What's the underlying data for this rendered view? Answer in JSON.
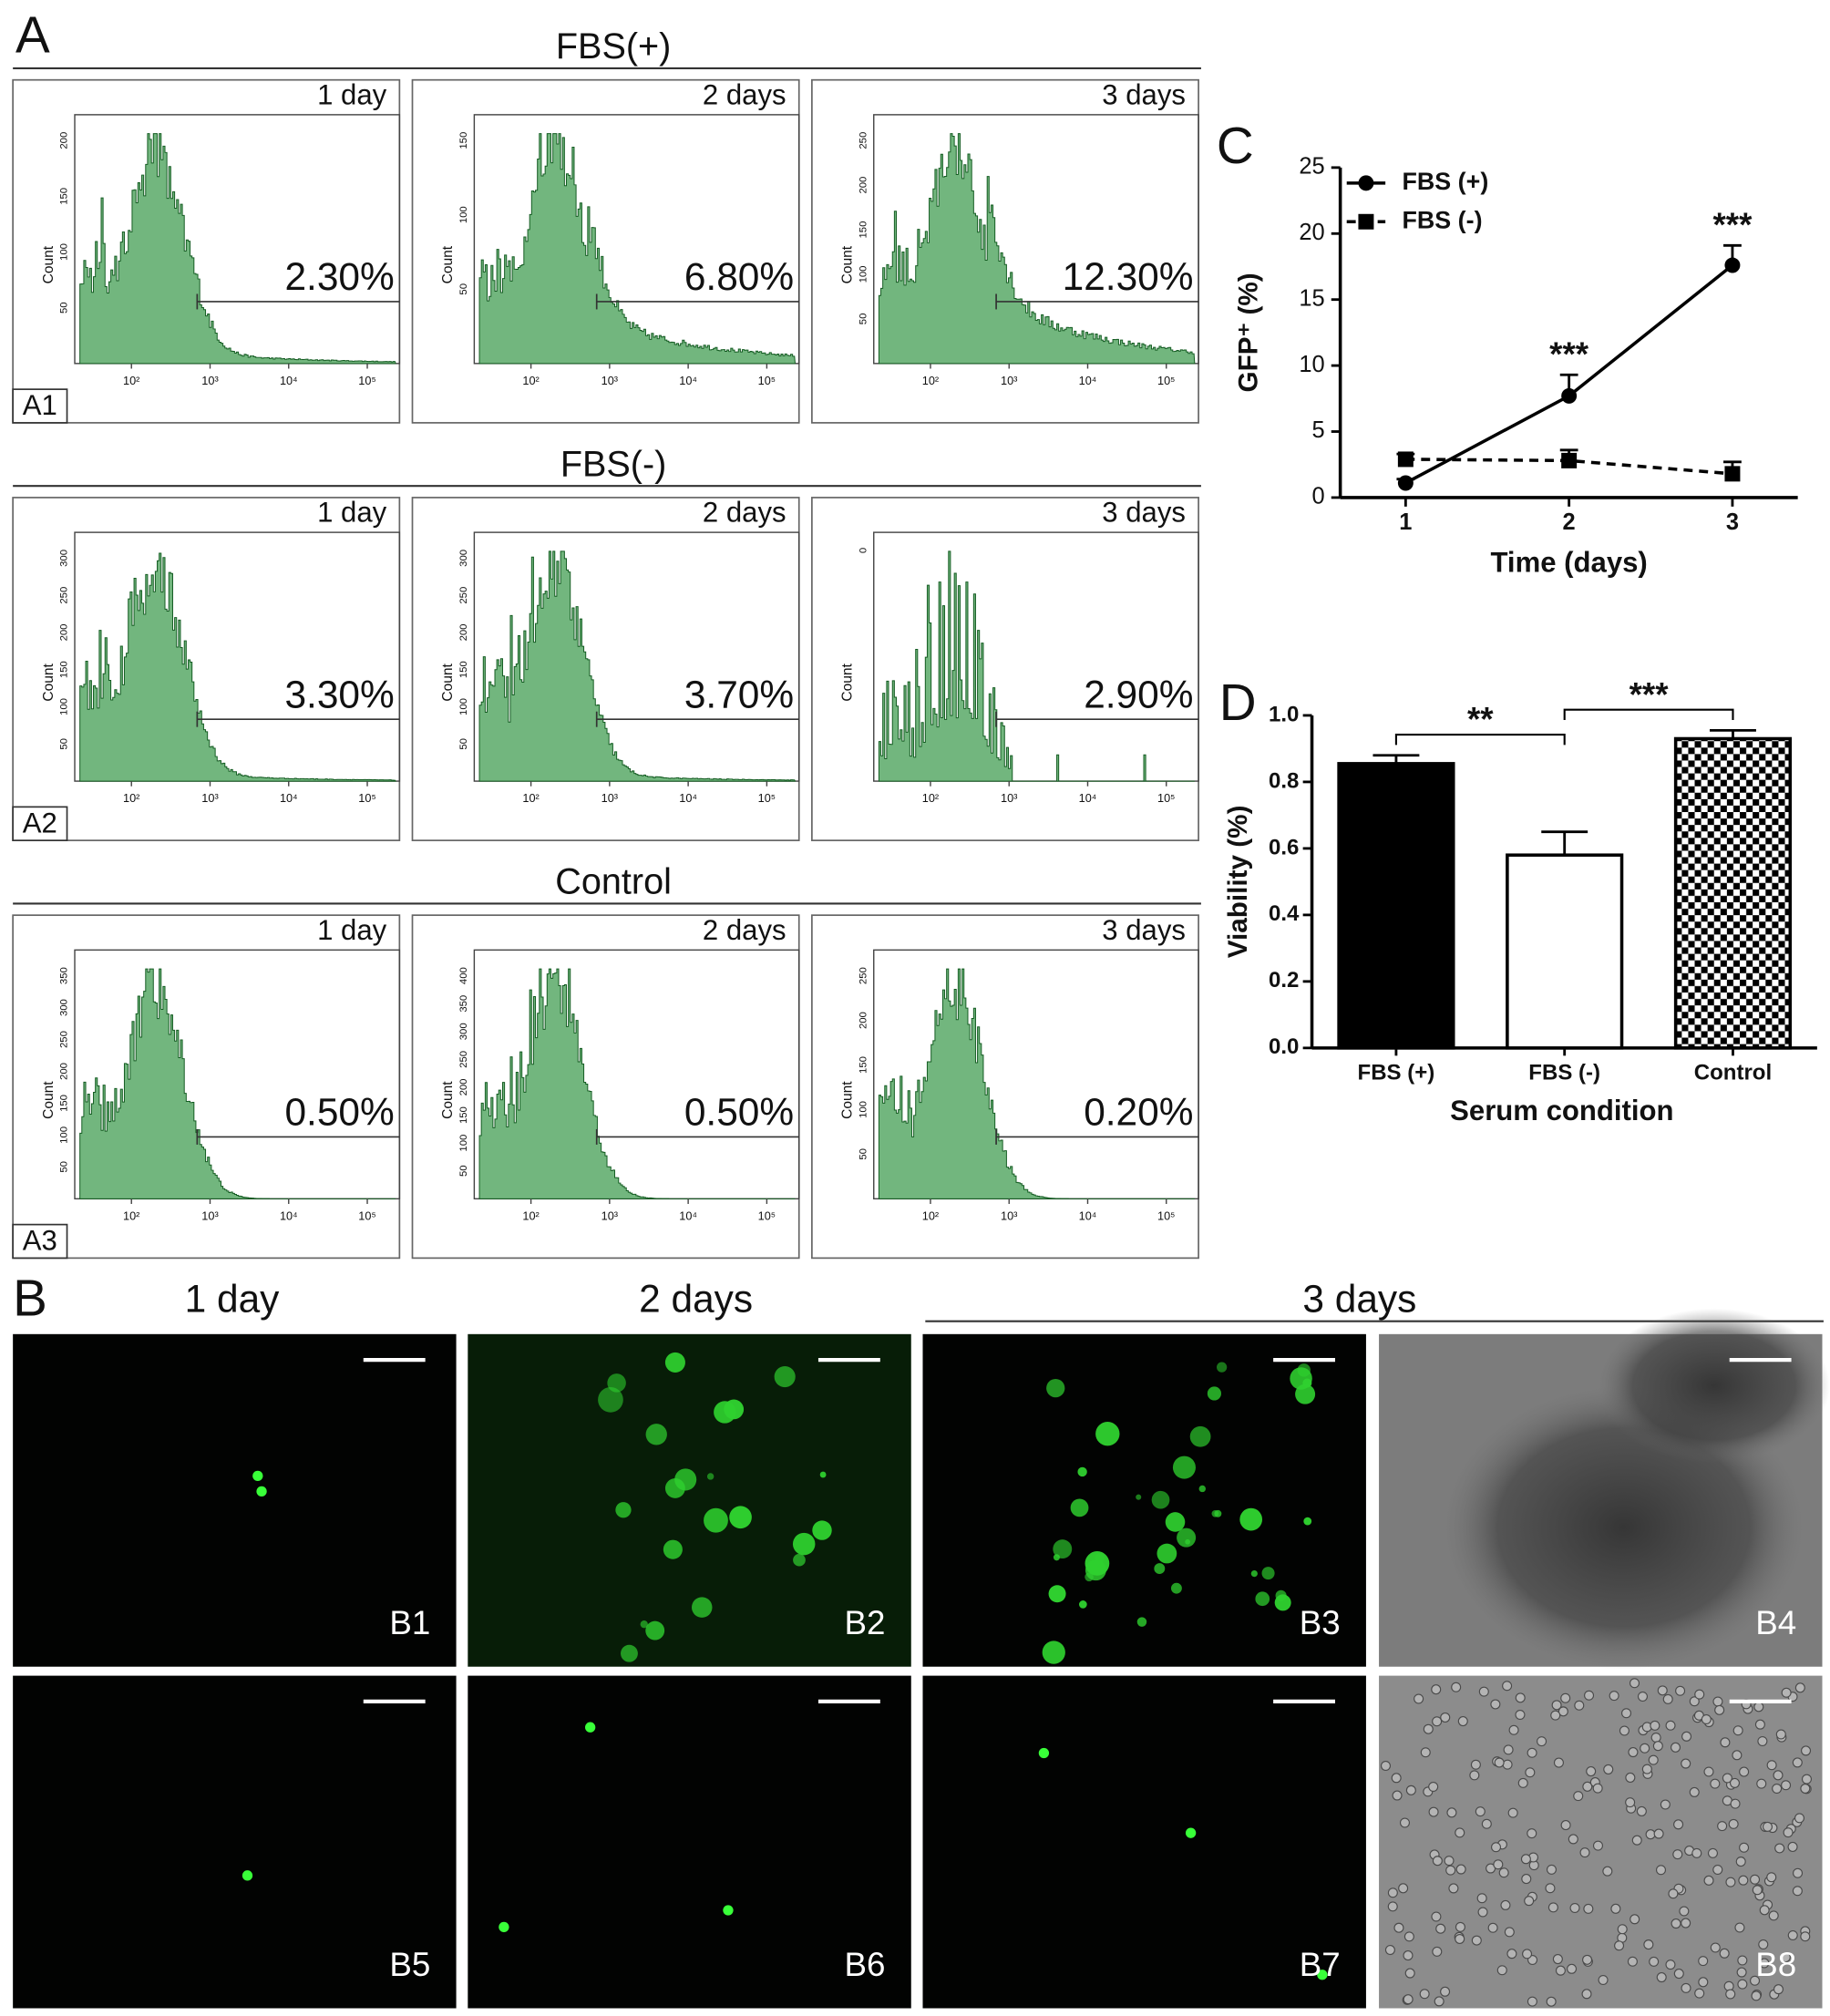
{
  "figure": {
    "panel_labels": {
      "a": "A",
      "b": "B",
      "c": "C",
      "d": "D"
    },
    "panel_a": {
      "y_axis_label": "Count",
      "x_ticks": [
        "10²",
        "10³",
        "10⁴",
        "10⁵"
      ],
      "rows": [
        {
          "title": "FBS(+)",
          "tag": "A1",
          "plots": [
            {
              "label": "1 day",
              "percent": "2.30%",
              "yticks": [
                50,
                100,
                150,
                200
              ]
            },
            {
              "label": "2 days",
              "percent": "6.80%",
              "yticks": [
                50,
                100,
                150
              ]
            },
            {
              "label": "3 days",
              "percent": "12.30%",
              "yticks": [
                50,
                100,
                150,
                200,
                250
              ]
            }
          ]
        },
        {
          "title": "FBS(-)",
          "tag": "A2",
          "plots": [
            {
              "label": "1 day",
              "percent": "3.30%",
              "yticks": [
                50,
                100,
                150,
                200,
                250,
                300
              ]
            },
            {
              "label": "2 days",
              "percent": "3.70%",
              "yticks": [
                50,
                100,
                150,
                200,
                250,
                300
              ]
            },
            {
              "label": "3 days",
              "percent": "2.90%",
              "yticks": [
                0
              ]
            }
          ]
        },
        {
          "title": "Control",
          "tag": "A3",
          "plots": [
            {
              "label": "1 day",
              "percent": "0.50%",
              "yticks": [
                50,
                100,
                150,
                200,
                250,
                300,
                350
              ]
            },
            {
              "label": "2 days",
              "percent": "0.50%",
              "yticks": [
                50,
                100,
                150,
                200,
                250,
                300,
                350,
                400
              ]
            },
            {
              "label": "3 days",
              "percent": "0.20%",
              "yticks": [
                50,
                100,
                150,
                200,
                250
              ]
            }
          ]
        }
      ]
    },
    "panel_b": {
      "columns": [
        "1 day",
        "2 days",
        "3 days"
      ],
      "images": [
        "B1",
        "B2",
        "B3",
        "B4",
        "B5",
        "B6",
        "B7",
        "B8"
      ]
    }
  },
  "chart_data": [
    {
      "type": "line",
      "y_label": "GFP⁺ (%)",
      "x_label": "Time (days)",
      "x": [
        1,
        2,
        3
      ],
      "xlim": [
        0.6,
        3.4
      ],
      "xticks": [
        1,
        2,
        3
      ],
      "ylim": [
        0,
        25
      ],
      "yticks": [
        0,
        5,
        10,
        15,
        20,
        25
      ],
      "legend": "top-left",
      "series": [
        {
          "name": "FBS (+)",
          "color": "#000000",
          "line_style": "solid",
          "marker": "circle",
          "values": [
            1.1,
            7.7,
            17.6
          ],
          "errors": [
            0.3,
            1.6,
            1.5
          ]
        },
        {
          "name": "FBS (-)",
          "color": "#000000",
          "line_style": "dashed",
          "marker": "square",
          "values": [
            2.9,
            2.8,
            1.8
          ],
          "errors": [
            0.4,
            0.8,
            0.9
          ]
        }
      ],
      "annotations": [
        {
          "text": "***",
          "x": 2,
          "series": "FBS (+)"
        },
        {
          "text": "***",
          "x": 3,
          "series": "FBS (+)"
        }
      ]
    },
    {
      "type": "bar",
      "y_label": "Viability (%)",
      "x_label": "Serum condition",
      "categories": [
        "FBS (+)",
        "FBS (-)",
        "Control"
      ],
      "values": [
        0.855,
        0.58,
        0.93
      ],
      "errors": [
        0.025,
        0.07,
        0.025
      ],
      "colors": [
        "#000000",
        "#ffffff",
        "#000000"
      ],
      "fills": [
        "solid",
        "solid",
        "checkerboard"
      ],
      "ylim": [
        0,
        1
      ],
      "yticks": [
        {
          "value": 0,
          "label": "0.0"
        },
        {
          "value": 0.2,
          "label": "0.2"
        },
        {
          "value": 0.4,
          "label": "0.4"
        },
        {
          "value": 0.6,
          "label": "0.6"
        },
        {
          "value": 0.8,
          "label": "0.8"
        },
        {
          "value": 1,
          "label": "1.0"
        }
      ],
      "annotations": [
        {
          "text": "**",
          "between": [
            "FBS (+)",
            "FBS (-)"
          ]
        },
        {
          "text": "***",
          "between": [
            "FBS (-)",
            "Control"
          ]
        }
      ]
    }
  ]
}
